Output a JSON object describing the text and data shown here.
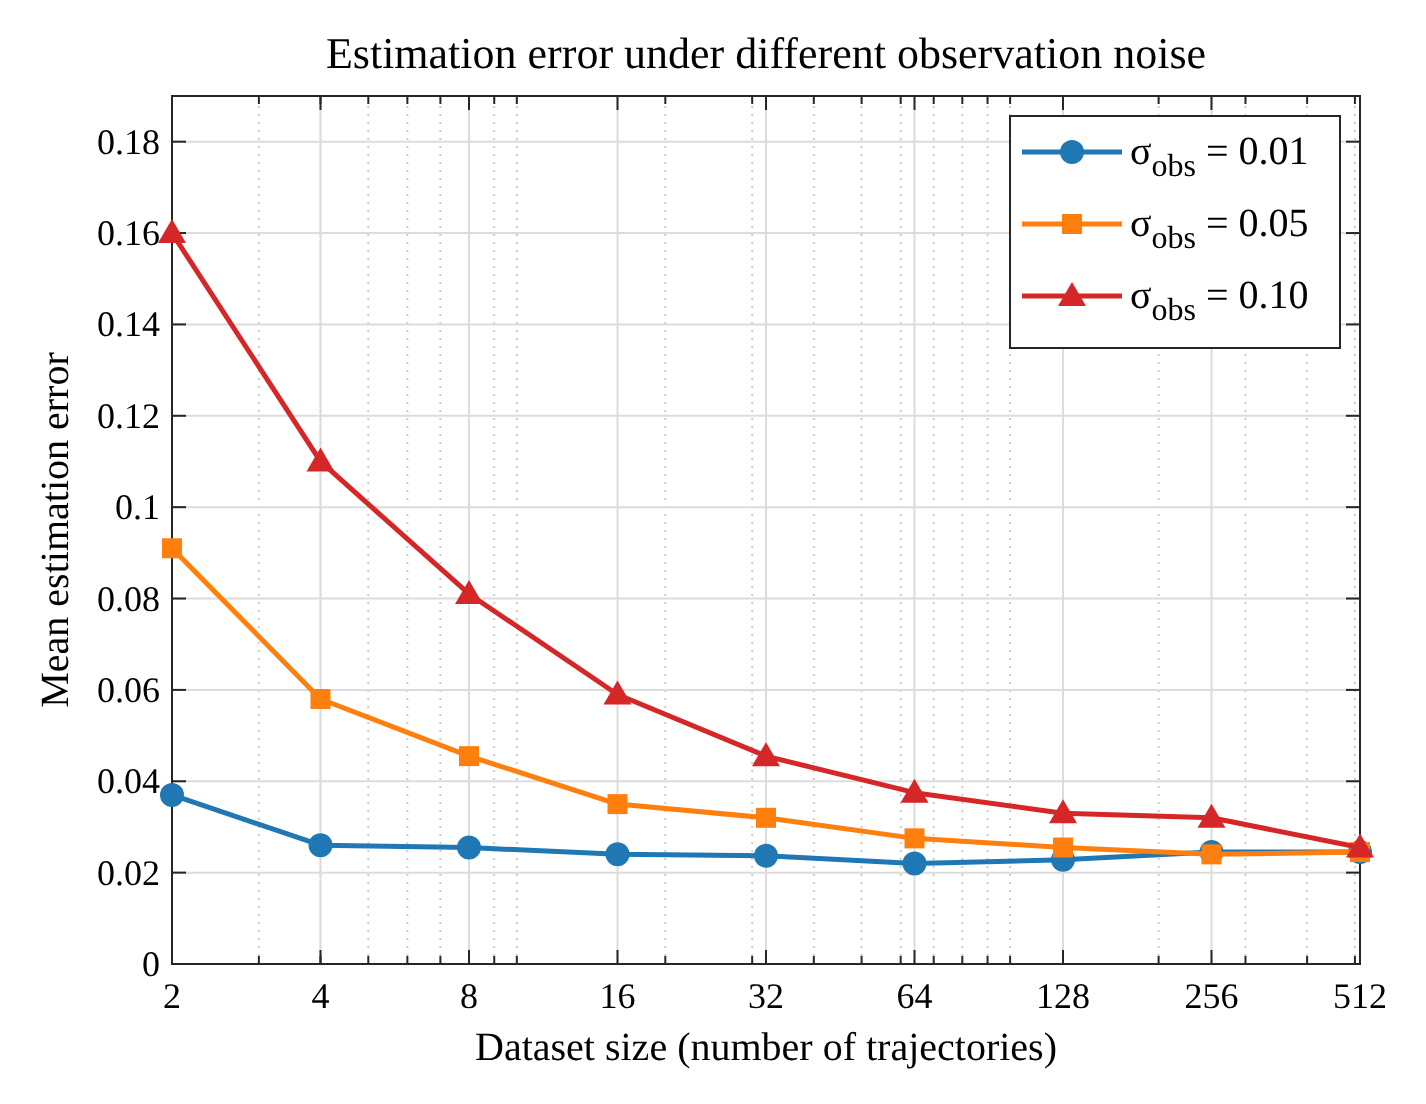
{
  "chart_data": {
    "type": "line",
    "title": "Estimation error under different observation noise",
    "xlabel": "Dataset size (number of trajectories)",
    "ylabel": "Mean estimation error",
    "x": [
      2,
      4,
      8,
      16,
      32,
      64,
      128,
      256,
      512
    ],
    "series": [
      {
        "name": "σ$_{obs}$ = 0.01",
        "color": "#1f77b4",
        "marker": "circle",
        "values": [
          0.037,
          0.026,
          0.0255,
          0.024,
          0.0237,
          0.022,
          0.0228,
          0.0245,
          0.0245
        ]
      },
      {
        "name": "σ$_{obs}$ = 0.05",
        "color": "#ff7f0e",
        "marker": "square",
        "values": [
          0.091,
          0.058,
          0.0455,
          0.035,
          0.032,
          0.0275,
          0.0255,
          0.024,
          0.0245
        ]
      },
      {
        "name": "σ$_{obs}$ = 0.10",
        "color": "#d62728",
        "marker": "triangle",
        "values": [
          0.16,
          0.11,
          0.081,
          0.059,
          0.0455,
          0.0375,
          0.033,
          0.032,
          0.0255
        ]
      }
    ],
    "log": "x",
    "xlim": [
      2,
      512
    ],
    "xticks": [
      2,
      4,
      8,
      16,
      32,
      64,
      128,
      256,
      512
    ],
    "ylim": [
      0,
      0.19
    ],
    "yticks": [
      0,
      0.02,
      0.04,
      0.06,
      0.08,
      0.1,
      0.12,
      0.14,
      0.16,
      0.18
    ],
    "grid": true,
    "legend": "top right",
    "line_style": "solid"
  }
}
